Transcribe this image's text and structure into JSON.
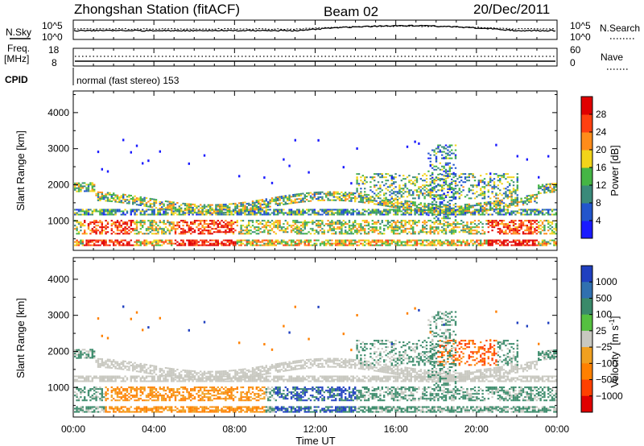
{
  "header": {
    "station": "Zhongshan Station (fitACF)",
    "beam": "Beam 02",
    "date": "20/Dec/2011"
  },
  "panels_top": {
    "nsky_label": "N.Sky",
    "nsky_ticks": [
      "10^5",
      "10^0"
    ],
    "nsearch_label": "N.Search",
    "nsearch_ticks": [
      "10^5",
      "10^0"
    ],
    "freq_label_1": "Freq.",
    "freq_label_2": "[MHz]",
    "freq_ticks": [
      "18",
      "8"
    ],
    "nave_label": "Nave",
    "nave_ticks": [
      "60",
      "0"
    ],
    "cpid_label": "CPID",
    "cpid_value": "normal (fast stereo) 153"
  },
  "chart_data": [
    {
      "type": "heatmap",
      "name": "power",
      "ylabel": "Slant Range [km]",
      "yticks": [
        1000,
        2000,
        3000,
        4000
      ],
      "ylim": [
        180,
        4600
      ],
      "xlim": [
        "00:00",
        "24:00"
      ],
      "colorbar_label": "Power [dB]",
      "colorbar_ticks": [
        "4",
        "8",
        "12",
        "16",
        "20",
        "24",
        "28"
      ],
      "colorbar_colors": [
        "#1a1aff",
        "#2255cc",
        "#3a8a7a",
        "#45b545",
        "#f2d41a",
        "#ff8c1a",
        "#ff4010",
        "#e00000"
      ],
      "colorbar_range": [
        0,
        30
      ]
    },
    {
      "type": "heatmap",
      "name": "velocity",
      "ylabel": "Slant Range [km]",
      "yticks": [
        1000,
        2000,
        3000,
        4000
      ],
      "ylim": [
        180,
        4600
      ],
      "xlim": [
        "00:00",
        "24:00"
      ],
      "xlabel": "Time UT",
      "xticks": [
        "00:00",
        "04:00",
        "08:00",
        "12:00",
        "16:00",
        "20:00",
        "00:00"
      ],
      "colorbar_label": "Velocity",
      "colorbar_unit": "[m s",
      "colorbar_unit_exp": "-1",
      "colorbar_unit_end": "]",
      "colorbar_ticks": [
        "1000",
        "500",
        "100",
        "25",
        "−25",
        "−100",
        "−500",
        "−1000"
      ],
      "colorbar_colors": [
        "#2040c0",
        "#3070b0",
        "#3a8a6a",
        "#55c040",
        "#c8c8c0",
        "#f0a020",
        "#ff8000",
        "#ff4000",
        "#e00000"
      ]
    }
  ]
}
